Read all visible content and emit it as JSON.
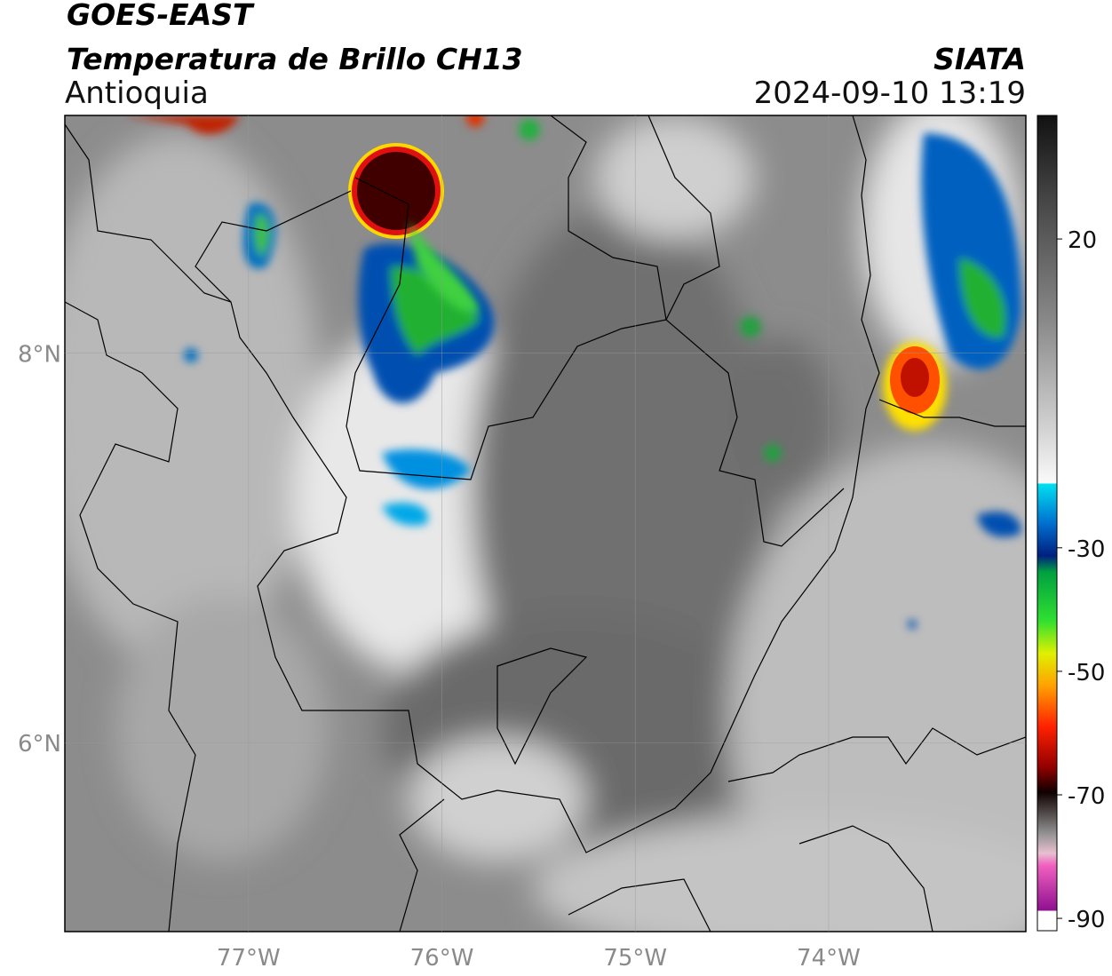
{
  "header": {
    "satellite": "GOES-EAST",
    "product": "Temperatura de Brillo CH13",
    "region": "Antioquia",
    "source": "SIATA",
    "datetime": "2024-09-10 13:19"
  },
  "map": {
    "xlim": [
      -77.95,
      -72.98
    ],
    "ylim": [
      5.03,
      9.22
    ],
    "xticks": [
      {
        "value": -77,
        "label": "77°W"
      },
      {
        "value": -76,
        "label": "76°W"
      },
      {
        "value": -75,
        "label": "75°W"
      },
      {
        "value": -74,
        "label": "74°W"
      }
    ],
    "yticks": [
      {
        "value": 8,
        "label": "8°N"
      },
      {
        "value": 6,
        "label": "6°N"
      }
    ]
  },
  "colorbar": {
    "clim": [
      -92,
      40
    ],
    "ticks": [
      20,
      -30,
      -50,
      -70,
      -90
    ]
  }
}
